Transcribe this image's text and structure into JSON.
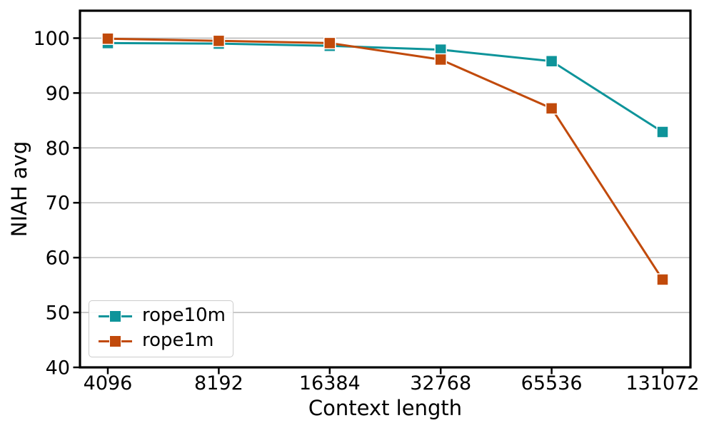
{
  "chart_data": {
    "type": "line",
    "title": "",
    "xlabel": "Context length",
    "ylabel": "NIAH avg",
    "categories": [
      "4096",
      "8192",
      "16384",
      "32768",
      "65536",
      "131072"
    ],
    "series": [
      {
        "name": "rope10m",
        "color": "#0e949a",
        "marker": "square",
        "values": [
          99.1,
          99.0,
          98.6,
          97.9,
          95.8,
          82.9
        ]
      },
      {
        "name": "rope1m",
        "color": "#c14a0b",
        "marker": "square",
        "values": [
          99.9,
          99.5,
          99.1,
          96.1,
          87.2,
          56.0
        ]
      }
    ],
    "ylim": [
      40,
      105
    ],
    "yticks": [
      40,
      50,
      60,
      70,
      80,
      90,
      100
    ],
    "grid": true,
    "grid_color": "#b0b0b0",
    "axis_color": "#000000",
    "legend_position": "lower left"
  }
}
